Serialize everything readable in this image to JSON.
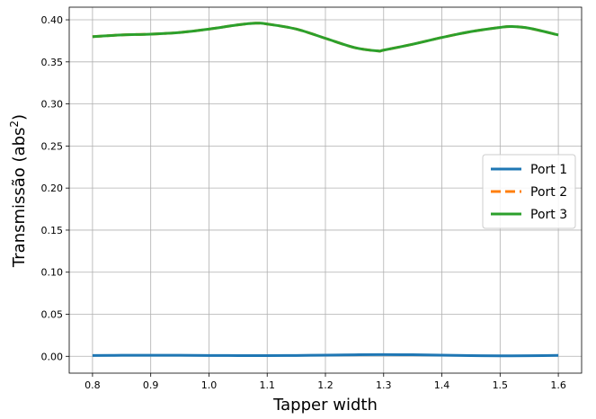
{
  "chart_data": {
    "type": "line",
    "xlabel": "Tapper width",
    "ylabel_main": "Transmissão (abs",
    "ylabel_sup": "2",
    "ylabel_end": ")",
    "xlim": [
      0.76,
      1.64
    ],
    "ylim": [
      -0.02,
      0.415
    ],
    "xticks": [
      0.8,
      0.9,
      1.0,
      1.1,
      1.2,
      1.3,
      1.4,
      1.5,
      1.6
    ],
    "xtick_labels": [
      "0.8",
      "0.9",
      "1.0",
      "1.1",
      "1.2",
      "1.3",
      "1.4",
      "1.5",
      "1.6"
    ],
    "yticks": [
      0.0,
      0.05,
      0.1,
      0.15,
      0.2,
      0.25,
      0.3,
      0.35,
      0.4
    ],
    "ytick_labels": [
      "0.00",
      "0.05",
      "0.10",
      "0.15",
      "0.20",
      "0.25",
      "0.30",
      "0.35",
      "0.40"
    ],
    "grid": true,
    "legend_position": "center-right",
    "x": [
      0.8,
      0.85,
      0.9,
      0.95,
      1.0,
      1.05,
      1.08,
      1.1,
      1.15,
      1.2,
      1.25,
      1.29,
      1.3,
      1.35,
      1.4,
      1.45,
      1.5,
      1.52,
      1.55,
      1.6
    ],
    "series": [
      {
        "name": "Port 1",
        "color": "#1f77b4",
        "dash": "solid",
        "values": [
          0.001,
          0.0012,
          0.0013,
          0.0012,
          0.001,
          0.0009,
          0.0009,
          0.0009,
          0.001,
          0.0014,
          0.0018,
          0.002,
          0.002,
          0.0019,
          0.0014,
          0.0008,
          0.0006,
          0.0006,
          0.0007,
          0.0011
        ]
      },
      {
        "name": "Port 2",
        "color": "#ff7f0e",
        "dash": "dashed",
        "values": [
          0.38,
          0.382,
          0.383,
          0.385,
          0.389,
          0.394,
          0.396,
          0.395,
          0.389,
          0.378,
          0.367,
          0.363,
          0.364,
          0.371,
          0.379,
          0.386,
          0.391,
          0.392,
          0.39,
          0.382
        ]
      },
      {
        "name": "Port 3",
        "color": "#2ca02c",
        "dash": "solid",
        "values": [
          0.38,
          0.382,
          0.383,
          0.385,
          0.389,
          0.394,
          0.396,
          0.395,
          0.389,
          0.378,
          0.367,
          0.363,
          0.364,
          0.371,
          0.379,
          0.386,
          0.391,
          0.392,
          0.39,
          0.382
        ]
      }
    ]
  }
}
